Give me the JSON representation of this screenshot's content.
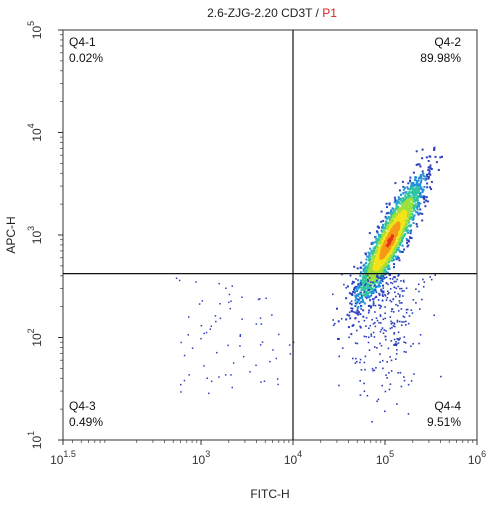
{
  "chart_data": {
    "type": "scatter",
    "title_main": "2.6-ZJG-2.20 CD3T / ",
    "title_gate": "P1",
    "title_gate_color": "#e02020",
    "xlabel": "FITC-H",
    "ylabel": "APC-H",
    "x_scale": "log",
    "y_scale": "log",
    "xlim": [
      31.6,
      1000000
    ],
    "ylim": [
      10,
      100000
    ],
    "x_ticks": [
      {
        "value": 31.6,
        "base": "10",
        "exp": "1.5"
      },
      {
        "value": 1000,
        "base": "10",
        "exp": "3"
      },
      {
        "value": 10000,
        "base": "10",
        "exp": "4"
      },
      {
        "value": 100000,
        "base": "10",
        "exp": "5"
      },
      {
        "value": 1000000,
        "base": "10",
        "exp": "6"
      }
    ],
    "y_ticks": [
      {
        "value": 10,
        "base": "10",
        "exp": "1"
      },
      {
        "value": 100,
        "base": "10",
        "exp": "2"
      },
      {
        "value": 1000,
        "base": "10",
        "exp": "3"
      },
      {
        "value": 10000,
        "base": "10",
        "exp": "4"
      },
      {
        "value": 100000,
        "base": "10",
        "exp": "5"
      }
    ],
    "gate_x": 10000,
    "gate_y": 420,
    "quadrants": [
      {
        "name": "Q4-1",
        "percent": "0.02%"
      },
      {
        "name": "Q4-2",
        "percent": "89.98%"
      },
      {
        "name": "Q4-3",
        "percent": "0.49%"
      },
      {
        "name": "Q4-4",
        "percent": "9.51%"
      }
    ],
    "population": {
      "center_x": 110000,
      "center_y": 900,
      "density_colors": [
        "#2b3fbf",
        "#1f8fd8",
        "#2fc4a0",
        "#9be03c",
        "#f3e318",
        "#f59a17",
        "#e5341b"
      ]
    }
  }
}
